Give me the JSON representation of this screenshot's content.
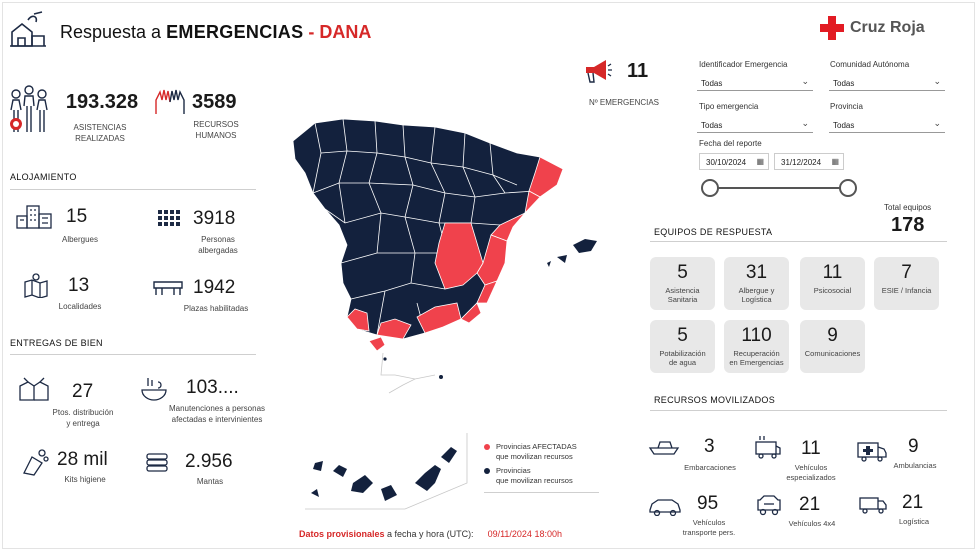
{
  "header": {
    "title_prefix": "Respuesta a",
    "title_bold": "EMERGENCIAS",
    "title_sep": " - ",
    "title_red": "DANA",
    "brand": "Cruz Roja",
    "colors": {
      "accent": "#d62828",
      "navy": "#13213d",
      "affected": "#f0424c"
    }
  },
  "kpis": {
    "asistencias": {
      "value": "193.328",
      "label1": "ASISTENCIAS",
      "label2": "REALIZADAS"
    },
    "recursos": {
      "value": "3589",
      "label1": "RECURSOS",
      "label2": "HUMANOS"
    },
    "emergencias": {
      "value": "11",
      "label": "Nº EMERGENCIAS"
    }
  },
  "alojamiento": {
    "title": "ALOJAMIENTO",
    "albergues": {
      "value": "15",
      "label": "Albergues"
    },
    "personas": {
      "value": "3918",
      "label1": "Personas",
      "label2": "albergadas"
    },
    "localidades": {
      "value": "13",
      "label": "Localidades"
    },
    "plazas": {
      "value": "1942",
      "label": "Plazas habilitadas"
    }
  },
  "entregas": {
    "title": "ENTREGAS DE BIEN",
    "ptos": {
      "value": "27",
      "label1": "Ptos. distribución",
      "label2": "y entrega"
    },
    "manutenciones": {
      "value": "103....",
      "label1": "Manutenciones a personas",
      "label2": "afectadas e intervinientes"
    },
    "kits": {
      "value": "28 mil",
      "label": "Kits higiene"
    },
    "mantas": {
      "value": "2.956",
      "label": "Mantas"
    }
  },
  "filters": {
    "identificador": {
      "label": "Identificador Emergencia",
      "value": "Todas"
    },
    "comunidad": {
      "label": "Comunidad Autónoma",
      "value": "Todas"
    },
    "tipo": {
      "label": "Tipo emergencia",
      "value": "Todas"
    },
    "provincia": {
      "label": "Provincia",
      "value": "Todas"
    },
    "fecha": {
      "label": "Fecha del reporte",
      "from": "30/10/2024",
      "to": "31/12/2024"
    }
  },
  "equipos": {
    "title": "EQUIPOS DE RESPUESTA",
    "total_label": "Total equipos",
    "total": "178",
    "cards": [
      {
        "n": "5",
        "l1": "Asistencia",
        "l2": "Sanitaria"
      },
      {
        "n": "31",
        "l1": "Albergue y",
        "l2": "Logística"
      },
      {
        "n": "11",
        "l1": "Psicosocial",
        "l2": ""
      },
      {
        "n": "7",
        "l1": "ESIE / Infancia",
        "l2": ""
      },
      {
        "n": "5",
        "l1": "Potabilización",
        "l2": "de agua"
      },
      {
        "n": "110",
        "l1": "Recuperación",
        "l2": "en Emergencias"
      },
      {
        "n": "9",
        "l1": "Comunicaciones",
        "l2": ""
      }
    ]
  },
  "recursos_movilizados": {
    "title": "RECURSOS MOVILIZADOS",
    "items": [
      {
        "n": "3",
        "l1": "Embarcaciones",
        "l2": ""
      },
      {
        "n": "11",
        "l1": "Vehículos",
        "l2": "especializados"
      },
      {
        "n": "9",
        "l1": "Ambulancias",
        "l2": ""
      },
      {
        "n": "95",
        "l1": "Vehículos",
        "l2": "transporte pers."
      },
      {
        "n": "21",
        "l1": "Vehículos 4x4",
        "l2": ""
      },
      {
        "n": "21",
        "l1": "Logística",
        "l2": ""
      }
    ]
  },
  "legend": {
    "affected1": "Provincias AFECTADAS",
    "affected2": "que movilizan recursos",
    "other1": "Provincias",
    "other2": "que movilizan recursos"
  },
  "footer": {
    "highlight": "Datos provisionales",
    "text": " a fecha y hora (UTC):",
    "datetime": "09/11/2024 18:00h"
  }
}
